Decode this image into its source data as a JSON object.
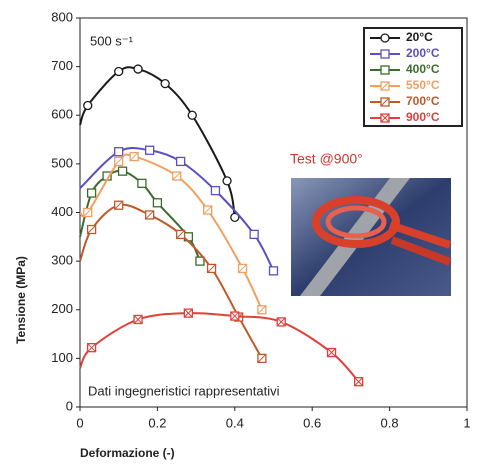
{
  "chart_data": {
    "type": "line",
    "xlabel": "Deformazione (-)",
    "ylabel": "Tensione (MPa)",
    "annotations": [
      "500 s⁻¹",
      "Test @900°",
      "Dati ingegneristici rappresentativi"
    ],
    "xlim": [
      0,
      1
    ],
    "xticks": [
      0,
      0.2,
      0.4,
      0.6,
      0.8,
      1
    ],
    "ylim": [
      0,
      800
    ],
    "yticks": [
      0,
      100,
      200,
      300,
      400,
      500,
      600,
      700,
      800
    ],
    "grid": false,
    "legend": "upper right",
    "series": [
      {
        "name": "20°C",
        "color": "#1a1a1a",
        "marker": "circle",
        "x": [
          0,
          0.02,
          0.1,
          0.15,
          0.22,
          0.29,
          0.38,
          0.4
        ],
        "values": [
          580,
          620,
          690,
          695,
          665,
          600,
          465,
          390
        ]
      },
      {
        "name": "200°C",
        "color": "#5a4fc4",
        "marker": "square",
        "x": [
          0,
          0.1,
          0.18,
          0.26,
          0.35,
          0.45,
          0.5
        ],
        "values": [
          450,
          525,
          528,
          505,
          445,
          355,
          280
        ]
      },
      {
        "name": "400°C",
        "color": "#3d6b2c",
        "marker": "square",
        "x": [
          0,
          0.03,
          0.07,
          0.11,
          0.16,
          0.2,
          0.28,
          0.31
        ],
        "values": [
          350,
          440,
          475,
          485,
          460,
          420,
          350,
          300
        ]
      },
      {
        "name": "550°C",
        "color": "#f0a060",
        "marker": "slash",
        "x": [
          0,
          0.02,
          0.1,
          0.14,
          0.25,
          0.33,
          0.42,
          0.47
        ],
        "values": [
          400,
          400,
          505,
          515,
          475,
          405,
          285,
          200
        ]
      },
      {
        "name": "700°C",
        "color": "#c0592a",
        "marker": "slash",
        "x": [
          0,
          0.03,
          0.1,
          0.18,
          0.26,
          0.34,
          0.41,
          0.47
        ],
        "values": [
          300,
          365,
          415,
          395,
          355,
          285,
          185,
          100
        ]
      },
      {
        "name": "900°C",
        "color": "#e0403a",
        "marker": "cross",
        "x": [
          0,
          0.03,
          0.15,
          0.28,
          0.4,
          0.52,
          0.65,
          0.72
        ],
        "values": [
          80,
          122,
          180,
          193,
          187,
          175,
          112,
          52
        ]
      }
    ]
  }
}
